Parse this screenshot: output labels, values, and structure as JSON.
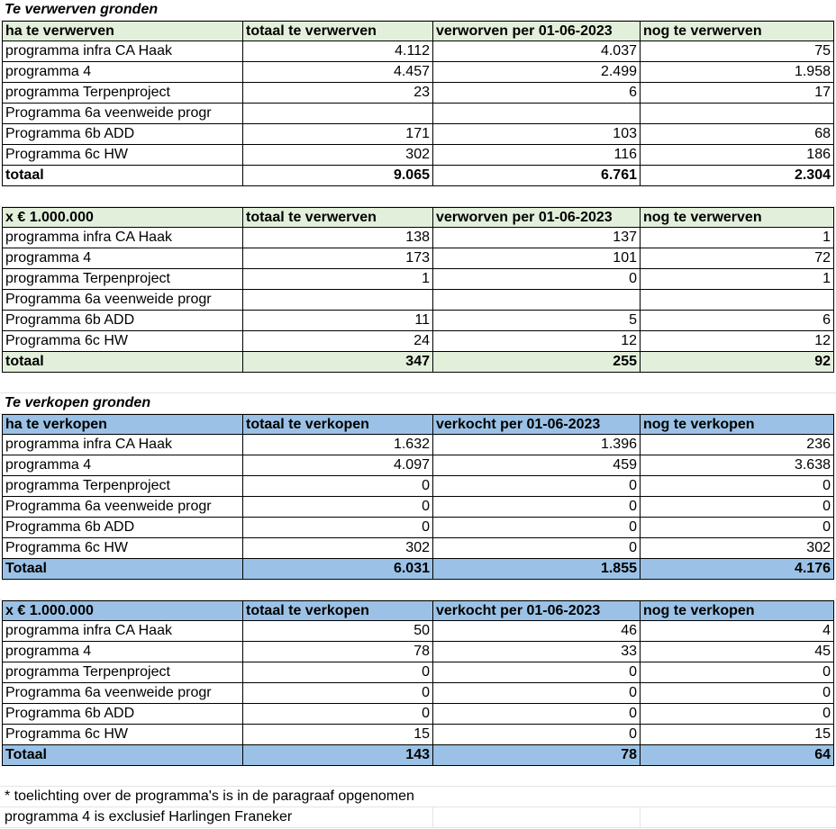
{
  "section1_title": "Te verwerven gronden",
  "section3_title": "Te verkopen gronden",
  "tables": [
    {
      "header": [
        "ha te verwerven",
        "totaal te verwerven",
        "verworven per 01-06-2023",
        "nog te verwerven"
      ],
      "rows": [
        [
          "programma infra CA Haak",
          "4.112",
          "4.037",
          "75"
        ],
        [
          "programma 4",
          "4.457",
          "2.499",
          "1.958"
        ],
        [
          "programma Terpenproject",
          "23",
          "6",
          "17"
        ],
        [
          "Programma 6a veenweide progr",
          "",
          "",
          ""
        ],
        [
          "Programma 6b ADD",
          "171",
          "103",
          "68"
        ],
        [
          "Programma 6c HW",
          "302",
          "116",
          "186"
        ]
      ],
      "total": [
        "totaal",
        "9.065",
        "6.761",
        "2.304"
      ]
    },
    {
      "header": [
        "x € 1.000.000",
        "totaal te verwerven",
        "verworven per 01-06-2023",
        "nog te verwerven"
      ],
      "rows": [
        [
          "programma infra CA Haak",
          "138",
          "137",
          "1"
        ],
        [
          "programma 4",
          "173",
          "101",
          "72"
        ],
        [
          "programma Terpenproject",
          "1",
          "0",
          "1"
        ],
        [
          "Programma 6a veenweide progr",
          "",
          "",
          ""
        ],
        [
          "Programma 6b ADD",
          "11",
          "5",
          "6"
        ],
        [
          "Programma 6c HW",
          "24",
          "12",
          "12"
        ]
      ],
      "total": [
        "totaal",
        "347",
        "255",
        "92"
      ]
    },
    {
      "header": [
        "ha te verkopen",
        "totaal te verkopen",
        "verkocht per 01-06-2023",
        "nog te verkopen"
      ],
      "rows": [
        [
          "programma infra CA Haak",
          "1.632",
          "1.396",
          "236"
        ],
        [
          "programma 4",
          "4.097",
          "459",
          "3.638"
        ],
        [
          "programma Terpenproject",
          "0",
          "0",
          "0"
        ],
        [
          "Programma 6a veenweide progr",
          "0",
          "0",
          "0"
        ],
        [
          "Programma 6b ADD",
          "0",
          "0",
          "0"
        ],
        [
          "Programma 6c HW",
          "302",
          "0",
          "302"
        ]
      ],
      "total": [
        "Totaal",
        "6.031",
        "1.855",
        "4.176"
      ]
    },
    {
      "header": [
        "x € 1.000.000",
        "totaal te verkopen",
        "verkocht per 01-06-2023",
        "nog te verkopen"
      ],
      "rows": [
        [
          "programma infra CA Haak",
          "50",
          "46",
          "4"
        ],
        [
          "programma 4",
          "78",
          "33",
          "45"
        ],
        [
          "programma Terpenproject",
          "0",
          "0",
          "0"
        ],
        [
          "Programma 6a veenweide progr",
          "0",
          "0",
          "0"
        ],
        [
          "Programma 6b ADD",
          "0",
          "0",
          "0"
        ],
        [
          "Programma 6c HW",
          "15",
          "0",
          "15"
        ]
      ],
      "total": [
        "Totaal",
        "143",
        "78",
        "64"
      ]
    }
  ],
  "notes": [
    "* toelichting over de programma's is in de paragraaf opgenomen",
    "programma 4 is exclusief Harlingen Franeker"
  ],
  "colors": {
    "green_header": "#e2efda",
    "blue_header": "#9bc2e6",
    "gridline": "#e4e4e4"
  }
}
